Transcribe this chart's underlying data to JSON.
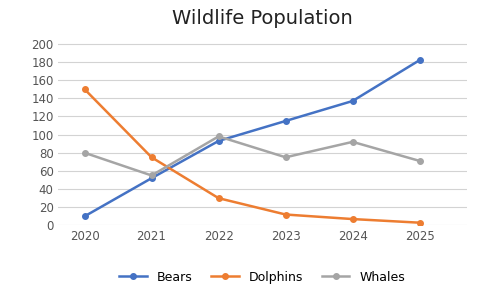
{
  "title": "Wildlife Population",
  "years": [
    2020,
    2021,
    2022,
    2023,
    2024,
    2025
  ],
  "series": {
    "Bears": {
      "values": [
        10,
        52,
        93,
        115,
        137,
        182
      ],
      "color": "#4472C4",
      "marker": "o"
    },
    "Dolphins": {
      "values": [
        150,
        75,
        30,
        12,
        7,
        3
      ],
      "color": "#ED7D31",
      "marker": "o"
    },
    "Whales": {
      "values": [
        80,
        55,
        98,
        75,
        92,
        71
      ],
      "color": "#A5A5A5",
      "marker": "o"
    }
  },
  "ylim": [
    0,
    210
  ],
  "yticks": [
    0,
    20,
    40,
    60,
    80,
    100,
    120,
    140,
    160,
    180,
    200
  ],
  "background_color": "#ffffff",
  "grid_color": "#d3d3d3",
  "title_fontsize": 14,
  "legend_labels": [
    "Bears",
    "Dolphins",
    "Whales"
  ]
}
